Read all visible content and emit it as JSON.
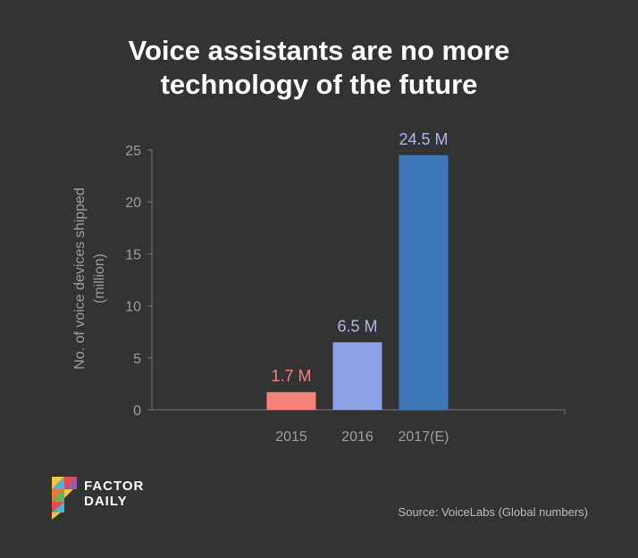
{
  "title_line1": "Voice assistants are no more",
  "title_line2": "technology of the future",
  "source": "Source: VoiceLabs (Global numbers)",
  "logo": {
    "line1": "FACTOR",
    "line2": "DAILY"
  },
  "chart_data": {
    "type": "bar",
    "categories": [
      "2015",
      "2016",
      "2017(E)"
    ],
    "values": [
      1.7,
      6.5,
      24.5
    ],
    "data_labels": [
      "1.7 M",
      "6.5 M",
      "24.5 M"
    ],
    "colors": [
      "#f4827a",
      "#8ea3e6",
      "#3f78b8"
    ],
    "label_colors": [
      "#f4827a",
      "#a9b9ef",
      "#a9b9ef"
    ],
    "title": "Voice assistants are no more technology of the future",
    "xlabel": "",
    "ylabel": "No. of voice devices shipped (million)",
    "ylabel_lines": [
      "No. of voice devices shipped",
      "(million)"
    ],
    "ylim": [
      0,
      25
    ],
    "yticks": [
      0,
      5,
      10,
      15,
      20,
      25
    ],
    "grid": false
  },
  "colors": {
    "background": "#333333",
    "axis": "#777777",
    "tick_text": "#9e9e9e"
  }
}
